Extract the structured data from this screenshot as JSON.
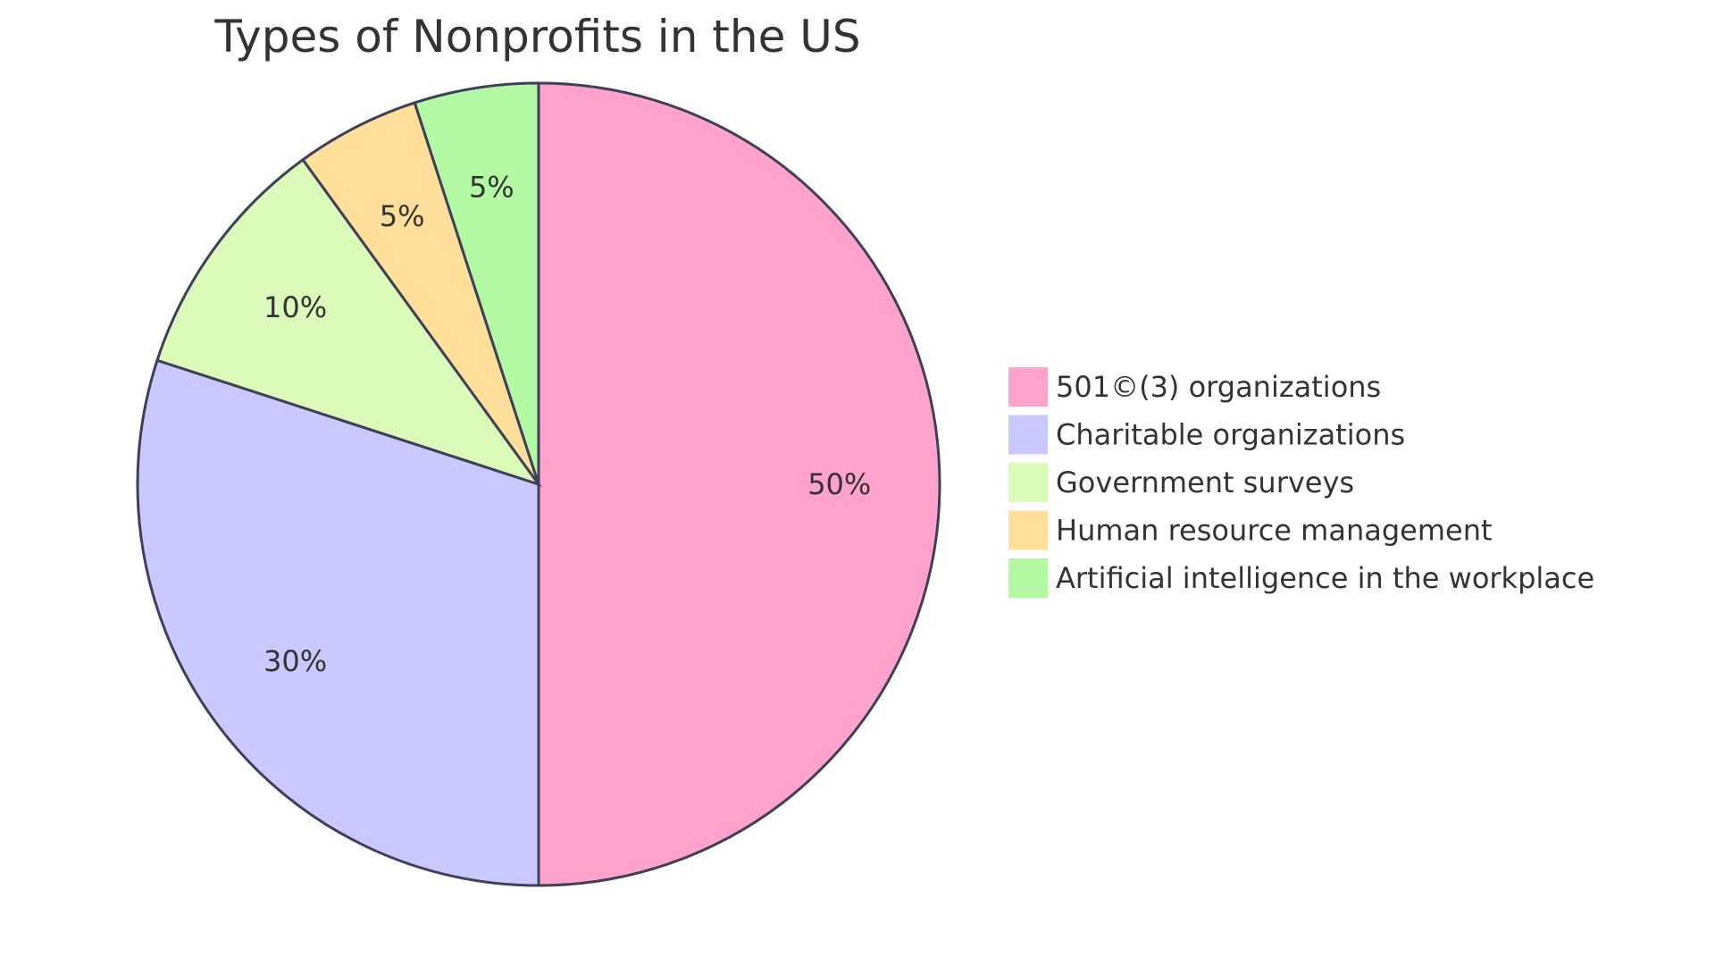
{
  "chart_data": {
    "type": "pie",
    "title": "Types of Nonprofits in the US",
    "categories": [
      "501©(3) organizations",
      "Charitable organizations",
      "Government surveys",
      "Human resource management",
      "Artificial intelligence in the workplace"
    ],
    "values": [
      50,
      30,
      10,
      5,
      5
    ],
    "labels": [
      "50%",
      "30%",
      "10%",
      "5%",
      "5%"
    ],
    "colors": [
      "#FFA3CD",
      "#C9C9FF",
      "#DBF9B8",
      "#FFDF99",
      "#B3F9A3"
    ],
    "legend_position": "right",
    "start_angle": "top",
    "direction": "clockwise"
  }
}
